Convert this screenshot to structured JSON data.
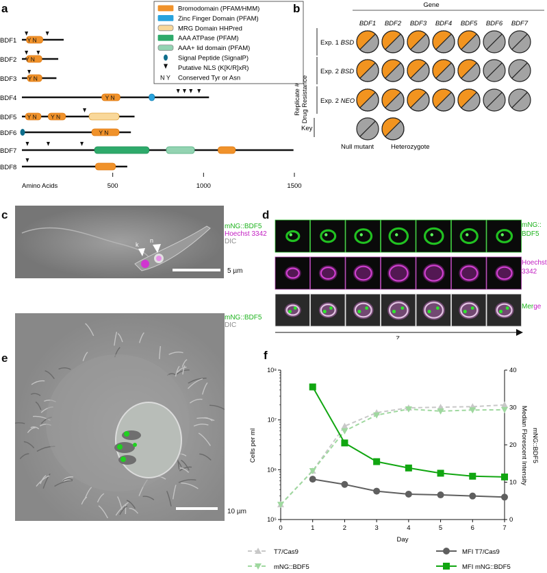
{
  "panels": {
    "a": "a",
    "b": "b",
    "c": "c",
    "d": "d",
    "e": "e",
    "f": "f"
  },
  "panel_a": {
    "legend": [
      {
        "label": "Bromodomain (PFAM/HMM)",
        "color": "#f0922b",
        "kind": "box"
      },
      {
        "label": "Zinc Finger Domain (PFAM)",
        "color": "#29a3dd",
        "kind": "box"
      },
      {
        "label": "MRG Domain HHPred",
        "color": "#f9d89a",
        "kind": "box-outline"
      },
      {
        "label": "AAA ATPase (PFAM)",
        "color": "#2eaa6b",
        "kind": "box"
      },
      {
        "label": "AAA+ lid domain (PFAM)",
        "color": "#93d3b2",
        "kind": "box-outline"
      },
      {
        "label": "Signal Peptide (SignalP)",
        "color": "#0f6e8c",
        "kind": "oval"
      },
      {
        "label": "Putative NLS (K[K/R]xR)",
        "kind": "triangle"
      },
      {
        "label": "Conserved Tyr or Asn",
        "kind": "text",
        "symbol": "N Y"
      }
    ],
    "proteins": [
      {
        "name": "BDF1",
        "length": 230,
        "domains": [
          {
            "type": "bromo",
            "start": 25,
            "end": 115
          }
        ],
        "nls": [
          25,
          140
        ],
        "yn": [
          {
            "pos": 55,
            "t": "Y N"
          }
        ],
        "sp": false
      },
      {
        "name": "BDF2",
        "length": 200,
        "domains": [
          {
            "type": "bromo",
            "start": 25,
            "end": 110
          }
        ],
        "nls": [
          25,
          90
        ],
        "yn": [
          {
            "pos": 45,
            "t": "Y N"
          }
        ],
        "sp": false
      },
      {
        "name": "BDF3",
        "length": 190,
        "domains": [
          {
            "type": "bromo",
            "start": 30,
            "end": 110
          }
        ],
        "nls": [
          40
        ],
        "yn": [
          {
            "pos": 60,
            "t": "Y N"
          }
        ],
        "sp": false
      },
      {
        "name": "BDF4",
        "length": 1030,
        "domains": [
          {
            "type": "bromo",
            "start": 440,
            "end": 540
          },
          {
            "type": "zinc",
            "start": 700,
            "end": 730
          }
        ],
        "nls": [
          860,
          895,
          930,
          975
        ],
        "yn": [
          {
            "pos": 485,
            "t": "Y N"
          }
        ],
        "sp": false
      },
      {
        "name": "BDF5",
        "length": 620,
        "domains": [
          {
            "type": "bromo",
            "start": 20,
            "end": 105
          },
          {
            "type": "bromo",
            "start": 145,
            "end": 240
          },
          {
            "type": "mrg",
            "start": 370,
            "end": 535
          }
        ],
        "nls": [
          345
        ],
        "yn": [
          {
            "pos": 55,
            "t": "Y N"
          },
          {
            "pos": 185,
            "t": "Y N"
          }
        ],
        "sp": false
      },
      {
        "name": "BDF6",
        "length": 600,
        "domains": [
          {
            "type": "bromo",
            "start": 385,
            "end": 535
          }
        ],
        "nls": [],
        "yn": [
          {
            "pos": 450,
            "t": "Y N"
          }
        ],
        "sp": true
      },
      {
        "name": "BDF7",
        "length": 1495,
        "domains": [
          {
            "type": "aaa",
            "start": 400,
            "end": 700
          },
          {
            "type": "aaalid",
            "start": 795,
            "end": 950
          },
          {
            "type": "bromo",
            "start": 1080,
            "end": 1175
          }
        ],
        "nls": [
          30,
          145,
          330
        ],
        "yn": [],
        "sp": false
      },
      {
        "name": "BDF8",
        "length": 580,
        "domains": [
          {
            "type": "bromo",
            "start": 405,
            "end": 515
          }
        ],
        "nls": [
          30
        ],
        "yn": [],
        "sp": false
      }
    ],
    "axis_label": "Amino Acids",
    "ticks": [
      "500",
      "1000",
      "1500"
    ]
  },
  "panel_b": {
    "gene_header": "Gene",
    "genes": [
      "BDF1",
      "BDF2",
      "BDF3",
      "BDF4",
      "BDF5",
      "BDF6",
      "BDF7"
    ],
    "ylabel_line1": "Replicate #",
    "ylabel_line2": "Drug Resistance",
    "rows": [
      {
        "label": "Exp. 1 BSD",
        "states": [
          "het",
          "het",
          "het",
          "het",
          "het",
          "null",
          "null"
        ]
      },
      {
        "label": "Exp. 2 BSD",
        "states": [
          "het",
          "het",
          "het",
          "het",
          "het",
          "null",
          "null"
        ]
      },
      {
        "label": "Exp. 2 NEO",
        "states": [
          "het",
          "het",
          "het",
          "het",
          "het",
          "null",
          "null"
        ]
      }
    ],
    "key_label": "Key",
    "key_null": "Null mutant",
    "key_het": "Heterozygote"
  },
  "panel_c": {
    "labels": [
      "mNG::BDF5",
      "Hoechst 3342",
      "DIC"
    ],
    "label_colors": [
      "#1cb31c",
      "#c21ec2",
      "#8a8a8a"
    ],
    "arrow_k": "k",
    "arrow_n": "n",
    "scale": "5 µm"
  },
  "panel_d": {
    "row_labels": [
      [
        "mNG::",
        "BDF5"
      ],
      [
        "Hoechst",
        "3342"
      ],
      [
        "Merge",
        ""
      ]
    ],
    "axis": "Z",
    "frames": 7
  },
  "panel_e": {
    "labels": [
      "mNG::BDF5",
      "DIC"
    ],
    "scale": "10 µm"
  },
  "chart_data": {
    "type": "line",
    "x": [
      0,
      1,
      2,
      3,
      4,
      5,
      6,
      7
    ],
    "xlabel": "Day",
    "ylabel": "Cells per ml",
    "ylabel_right_line1": "Median Florescent Intensity",
    "ylabel_right_line2": "mNG::BDF5",
    "y_scale": "log",
    "ylim": [
      100000,
      100000000
    ],
    "yticks": [
      "10⁵",
      "10⁶",
      "10⁷",
      "10⁸"
    ],
    "y2lim": [
      0,
      40
    ],
    "y2ticks": [
      "0",
      "10",
      "20",
      "30",
      "40"
    ],
    "series": [
      {
        "name": "T7/Cas9",
        "axis": "left",
        "color": "#c8c8c8",
        "marker": "triangle-up",
        "dashed": true,
        "x": [
          0,
          1,
          2,
          3,
          4,
          5,
          6,
          7
        ],
        "values": [
          200000,
          950000,
          7500000,
          14000000,
          17500000,
          18000000,
          18500000,
          20000000
        ]
      },
      {
        "name": "mNG::BDF5",
        "axis": "left",
        "color": "#9fd89f",
        "marker": "triangle-down",
        "dashed": true,
        "x": [
          0,
          1,
          2,
          3,
          4,
          5,
          6,
          7
        ],
        "values": [
          200000,
          950000,
          6000000,
          12500000,
          16500000,
          15000000,
          15800000,
          16000000
        ]
      },
      {
        "name": "MFI T7/Cas9",
        "axis": "right",
        "color": "#5f5f5f",
        "marker": "circle",
        "dashed": false,
        "x": [
          1,
          2,
          3,
          4,
          5,
          6,
          7
        ],
        "values": [
          10.8,
          9.4,
          7.6,
          6.8,
          6.6,
          6.3,
          6.0
        ]
      },
      {
        "name": "MFI mNG::BDF5",
        "axis": "right",
        "color": "#11a611",
        "marker": "square",
        "dashed": false,
        "x": [
          1,
          2,
          3,
          4,
          5,
          6,
          7
        ],
        "values": [
          35.5,
          20.5,
          15.5,
          13.8,
          12.4,
          11.6,
          11.4
        ]
      }
    ],
    "grid": false,
    "legend_position": "bottom"
  }
}
